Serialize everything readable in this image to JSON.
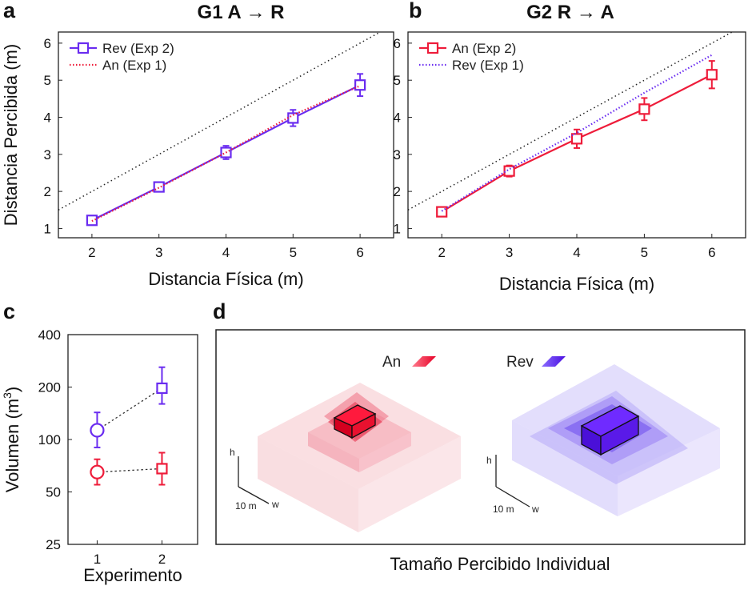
{
  "colors": {
    "blue": "#6a2cf0",
    "red": "#ee1c3a",
    "ref": "#222222"
  },
  "panels": {
    "a": {
      "letter": "a",
      "title": "G1 A → R"
    },
    "b": {
      "letter": "b",
      "title": "G2 R → A"
    },
    "c": {
      "letter": "c"
    },
    "d": {
      "letter": "d",
      "caption": "Tamaño Percibido Individual",
      "legend_an": "An",
      "legend_rev": "Rev",
      "axis_h": "h",
      "axis_w": "w",
      "scale_label": "10 m"
    }
  },
  "chart_data": [
    {
      "panel": "a",
      "type": "line",
      "title": "G1 A → R",
      "xlabel": "Distancia Física (m)",
      "ylabel": "Distancia Percibida (m)",
      "xlim": [
        1.5,
        6.5
      ],
      "ylim": [
        0.75,
        6.3
      ],
      "xticks": [
        2,
        3,
        4,
        5,
        6
      ],
      "yticks": [
        1,
        2,
        3,
        4,
        5,
        6
      ],
      "reference_line": "y = x",
      "legend_position": "top-left",
      "x": [
        2,
        3,
        4,
        5,
        6
      ],
      "series": [
        {
          "name": "Rev (Exp 2)",
          "color": "#6a2cf0",
          "style": "solid-square",
          "values": [
            1.22,
            2.12,
            3.05,
            3.98,
            4.87
          ],
          "err": [
            0.1,
            0.1,
            0.18,
            0.22,
            0.3
          ]
        },
        {
          "name": "An (Exp 1)",
          "color": "#ee1c3a",
          "style": "dotted",
          "values": [
            1.2,
            2.1,
            3.05,
            4.06,
            4.85
          ]
        }
      ]
    },
    {
      "panel": "b",
      "type": "line",
      "title": "G2 R → A",
      "xlabel": "Distancia Física (m)",
      "ylabel": "",
      "xlim": [
        1.5,
        6.5
      ],
      "ylim": [
        0.75,
        6.3
      ],
      "xticks": [
        2,
        3,
        4,
        5,
        6
      ],
      "yticks": [
        1,
        2,
        3,
        4,
        5,
        6
      ],
      "reference_line": "y = x",
      "legend_position": "top-left",
      "x": [
        2,
        3,
        4,
        5,
        6
      ],
      "series": [
        {
          "name": "An (Exp 2)",
          "color": "#ee1c3a",
          "style": "solid-square",
          "values": [
            1.45,
            2.55,
            3.42,
            4.22,
            5.15
          ],
          "err": [
            0.1,
            0.15,
            0.25,
            0.3,
            0.37
          ]
        },
        {
          "name": "Rev (Exp 1)",
          "color": "#6a2cf0",
          "style": "dotted",
          "values": [
            1.47,
            2.6,
            3.58,
            4.66,
            5.68
          ]
        }
      ]
    },
    {
      "panel": "c",
      "type": "scatter",
      "xlabel": "Experimento",
      "ylabel": "Volumen (m³)",
      "ylabel_base": "Volumen (m",
      "ylabel_sup": "3",
      "ylabel_end": ")",
      "yscale": "log",
      "xlim": [
        0.55,
        2.55
      ],
      "ylim": [
        25,
        400
      ],
      "xticks": [
        1,
        2
      ],
      "yticks": [
        25,
        50,
        100,
        200,
        400
      ],
      "series": [
        {
          "name": "Rev",
          "color": "#6a2cf0",
          "marker_exp1": "circle",
          "marker_exp2": "square",
          "x": [
            1,
            2
          ],
          "values": [
            113,
            197
          ],
          "err_low": [
            90,
            160
          ],
          "err_high": [
            143,
            260
          ]
        },
        {
          "name": "An",
          "color": "#ee1c3a",
          "marker_exp1": "circle",
          "marker_exp2": "square",
          "x": [
            1,
            2
          ],
          "values": [
            65,
            68
          ],
          "err_low": [
            55,
            55
          ],
          "err_high": [
            77,
            84
          ]
        }
      ]
    }
  ]
}
